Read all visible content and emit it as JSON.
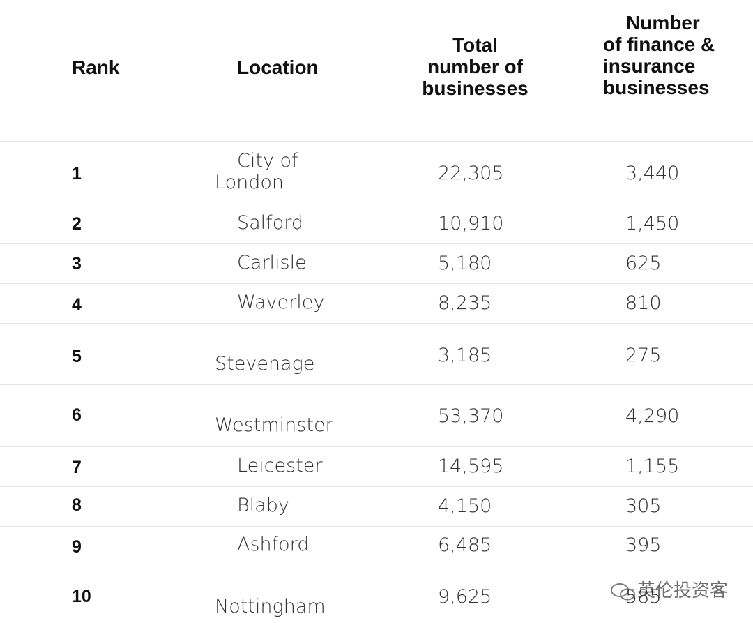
{
  "table": {
    "headers": [
      "Rank",
      "Location",
      "Total number of businesses",
      "Number of finance & insurance businesses"
    ],
    "rows": [
      [
        "1",
        "City of London",
        "22,305",
        "3,440"
      ],
      [
        "2",
        "Salford",
        "10,910",
        "1,450"
      ],
      [
        "3",
        "Carlisle",
        "5,180",
        "625"
      ],
      [
        "4",
        "Waverley",
        "8,235",
        "810"
      ],
      [
        "5",
        "Stevenage",
        "3,185",
        "275"
      ],
      [
        "6",
        "Westminster",
        "53,370",
        "4,290"
      ],
      [
        "7",
        "Leicester",
        "14,595",
        "1,155"
      ],
      [
        "8",
        "Blaby",
        "4,150",
        "305"
      ],
      [
        "9",
        "Ashford",
        "6,485",
        "395"
      ],
      [
        "10",
        "Nottingham",
        "9,625",
        "585"
      ]
    ]
  },
  "watermark": "英伦投资客"
}
